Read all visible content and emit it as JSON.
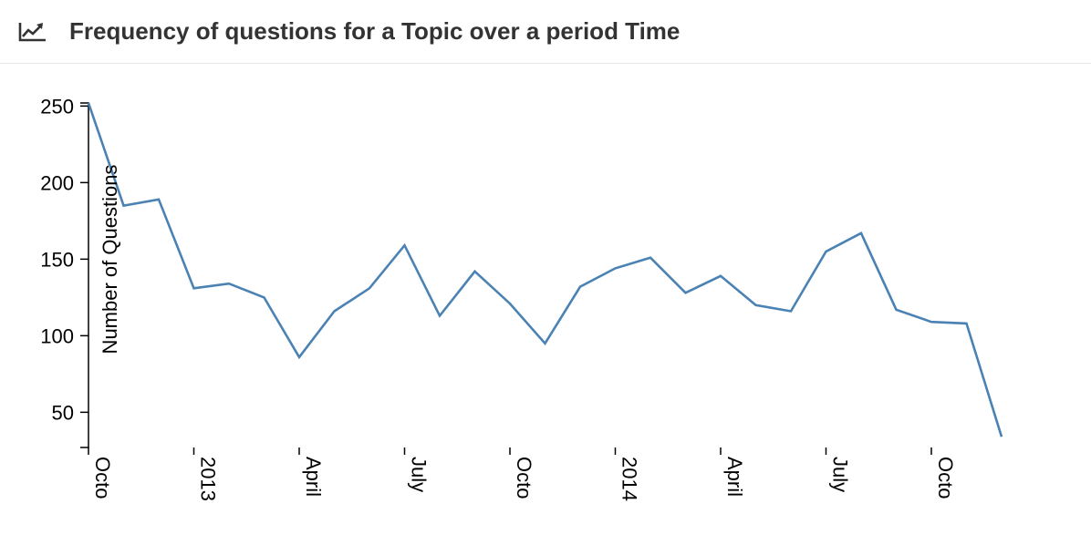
{
  "panel": {
    "title": "Frequency of questions for a Topic over a period Time",
    "icon": "line-chart-icon"
  },
  "colors": {
    "line": "#4a82b4",
    "axis": "#000000",
    "title_text": "#333333",
    "header_border": "#e6e6e6"
  },
  "chart_data": {
    "type": "line",
    "title": "",
    "xlabel": "",
    "ylabel": "Number of Questions",
    "ylim": [
      27,
      252
    ],
    "yticks": [
      50,
      100,
      150,
      200,
      250
    ],
    "x_tick_labels": [
      "Octo",
      "2013",
      "April",
      "July",
      "Octo",
      "2014",
      "April",
      "July",
      "Octo"
    ],
    "x_tick_positions": [
      0,
      3,
      6,
      9,
      12,
      15,
      18,
      21,
      24
    ],
    "xlim": [
      0,
      26
    ],
    "grid": false,
    "legend": "none",
    "series": [
      {
        "x": [
          0,
          1,
          2,
          3,
          4,
          5,
          6,
          7,
          8,
          9,
          10,
          11,
          12,
          13,
          14,
          15,
          16,
          17,
          18,
          19,
          20,
          21,
          22,
          23,
          24,
          25,
          26
        ],
        "values": [
          252,
          185,
          189,
          131,
          134,
          125,
          86,
          116,
          131,
          159,
          113,
          142,
          121,
          95,
          132,
          144,
          151,
          128,
          139,
          120,
          116,
          155,
          167,
          117,
          109,
          108,
          34
        ]
      }
    ]
  }
}
